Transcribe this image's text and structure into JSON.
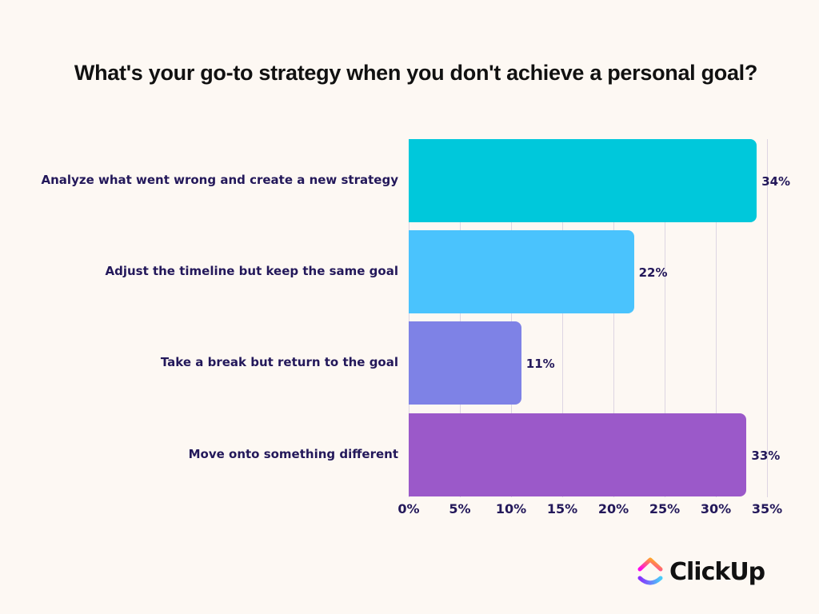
{
  "chart_data": {
    "type": "bar",
    "orientation": "horizontal",
    "title": "What's your go-to strategy when you don't achieve a personal goal?",
    "categories": [
      "Analyze what went wrong and create a new strategy",
      "Adjust the timeline but keep the same goal",
      "Take a break but return to the goal",
      "Move onto something different"
    ],
    "values": [
      34,
      22,
      11,
      33
    ],
    "value_labels": [
      "34%",
      "22%",
      "11%",
      "33%"
    ],
    "colors": [
      "#00c8db",
      "#4ac3fd",
      "#7e82e6",
      "#9b59c9"
    ],
    "xlabel": "",
    "ylabel": "",
    "xlim": [
      0,
      35
    ],
    "x_ticks": [
      "0%",
      "5%",
      "10%",
      "15%",
      "20%",
      "25%",
      "30%",
      "35%"
    ],
    "grid": true,
    "legend": "none"
  },
  "brand": {
    "name": "ClickUp"
  }
}
